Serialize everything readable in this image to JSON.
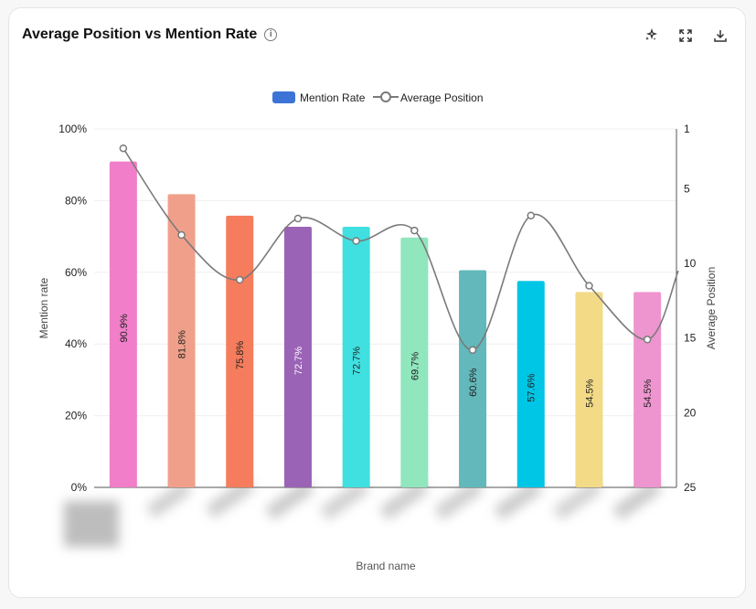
{
  "header": {
    "title": "Average Position vs Mention Rate",
    "icons": [
      "info-icon",
      "sparkle-icon",
      "expand-icon",
      "download-icon"
    ]
  },
  "chart_data": {
    "type": "bar",
    "xlabel": "Brand name",
    "ylabel": "Mention rate",
    "y2label": "Average Position",
    "ylim": [
      0,
      100
    ],
    "y2lim": [
      1,
      25
    ],
    "y2_inverted": true,
    "yticks": [
      "0%",
      "20%",
      "40%",
      "60%",
      "80%",
      "100%"
    ],
    "y2ticks": [
      "1",
      "5",
      "10",
      "15",
      "20",
      "25"
    ],
    "legend": {
      "placement": "top-center",
      "bar_label": "Mention Rate",
      "line_label": "Average Position"
    },
    "categories_hidden": true,
    "series": [
      {
        "name": "Mention Rate",
        "type": "bar",
        "values": [
          90.9,
          81.8,
          75.8,
          72.7,
          72.7,
          69.7,
          60.6,
          57.6,
          54.5,
          54.5
        ],
        "labels": [
          "90.9%",
          "81.8%",
          "75.8%",
          "72.7%",
          "72.7%",
          "69.7%",
          "60.6%",
          "57.6%",
          "54.5%",
          "54.5%"
        ],
        "colors": [
          "#f07ec8",
          "#f0a08a",
          "#f57c5c",
          "#9b63b5",
          "#40e0e0",
          "#90e6bd",
          "#62b8ba",
          "#00c6e6",
          "#f2da86",
          "#ee95cf"
        ]
      },
      {
        "name": "Average Position",
        "type": "line",
        "values": [
          2.3,
          8.1,
          11.1,
          7.0,
          8.5,
          7.8,
          15.8,
          6.8,
          11.5,
          15.1
        ]
      }
    ],
    "colors": {
      "legend_bar": "#3b74d6",
      "line": "#7a7a7a",
      "grid": "#efefef"
    }
  }
}
